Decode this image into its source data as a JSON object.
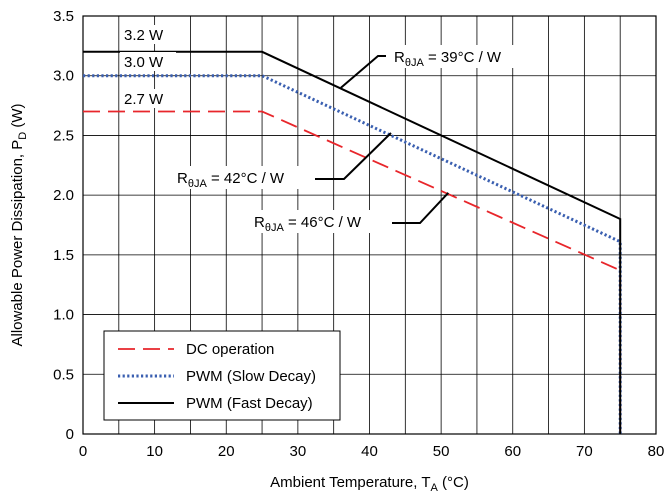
{
  "chart_data": {
    "type": "line",
    "xlabel": "Ambient Temperature, T",
    "xlabel_sub": "A",
    "xlabel_unit": " (°C)",
    "ylabel": "Allowable Power Dissipation, P",
    "ylabel_sub": "D",
    "ylabel_unit": " (W)",
    "xlim": [
      0,
      80
    ],
    "ylim": [
      0,
      3.5
    ],
    "xticks": [
      0,
      10,
      20,
      30,
      40,
      50,
      60,
      70,
      80
    ],
    "yticks": [
      0,
      0.5,
      1.0,
      1.5,
      2.0,
      2.5,
      3.0,
      3.5
    ],
    "xtick_labels": [
      "0",
      "10",
      "20",
      "30",
      "40",
      "50",
      "60",
      "70",
      "80"
    ],
    "ytick_labels": [
      "0",
      "0.5",
      "1.0",
      "1.5",
      "2.0",
      "2.5",
      "3.0",
      "3.5"
    ],
    "x_grid_step": 5,
    "y_grid_step": 0.5,
    "grid": true,
    "legend_position": "bottom-left",
    "series": [
      {
        "name": "DC operation",
        "style": "dashed",
        "color": "#e8262b",
        "x": [
          0,
          25,
          75,
          75
        ],
        "y": [
          2.7,
          2.7,
          1.37,
          0
        ]
      },
      {
        "name": "PWM (Slow Decay)",
        "style": "dotted",
        "color": "#3a5fb0",
        "x": [
          0,
          25,
          75,
          75
        ],
        "y": [
          3.0,
          3.0,
          1.61,
          0
        ]
      },
      {
        "name": "PWM (Fast Decay)",
        "style": "solid",
        "color": "#000000",
        "x": [
          0,
          25,
          75,
          75
        ],
        "y": [
          3.2,
          3.2,
          1.8,
          0
        ]
      }
    ],
    "annotations": [
      {
        "id": "level-fast",
        "text": "3.2 W"
      },
      {
        "id": "level-slow",
        "text": "3.0 W"
      },
      {
        "id": "level-dc",
        "text": "2.7 W"
      },
      {
        "id": "r39",
        "prefix": "R",
        "sub": "θJA",
        "suffix": " = 39°C / W",
        "arrow_to": [
          36,
          2.9
        ]
      },
      {
        "id": "r42",
        "prefix": "R",
        "sub": "θJA",
        "suffix": " = 42°C / W",
        "arrow_to": [
          43,
          2.52
        ]
      },
      {
        "id": "r46",
        "prefix": "R",
        "sub": "θJA",
        "suffix": " = 46°C / W",
        "arrow_to": [
          51,
          2.02
        ]
      }
    ]
  }
}
